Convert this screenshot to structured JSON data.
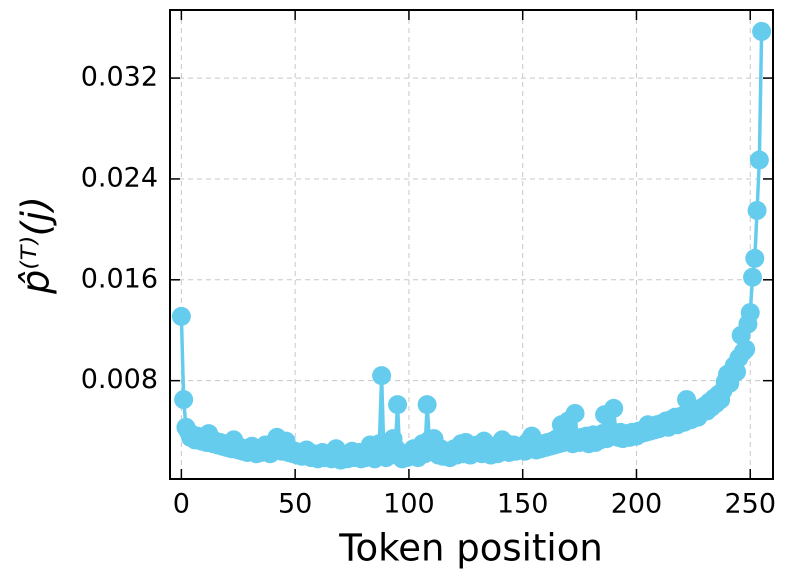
{
  "chart_data": {
    "type": "line",
    "xlabel": "Token position",
    "ylabel": "p̂⁽ᵀ⁾(j)",
    "color": "#66ccee",
    "grid": true,
    "xlim": [
      -5,
      260
    ],
    "xticks": [
      0,
      50,
      100,
      150,
      200,
      250
    ],
    "ylim": [
      0.0002,
      0.0374
    ],
    "yticks": [
      0.008,
      0.016,
      0.024,
      0.032
    ],
    "x": [
      0,
      1,
      2,
      3,
      4,
      5,
      6,
      7,
      8,
      9,
      10,
      11,
      12,
      13,
      14,
      15,
      16,
      17,
      18,
      19,
      20,
      21,
      22,
      23,
      24,
      25,
      26,
      27,
      28,
      29,
      30,
      31,
      32,
      33,
      34,
      35,
      36,
      37,
      38,
      39,
      40,
      41,
      42,
      43,
      44,
      45,
      46,
      47,
      48,
      49,
      50,
      51,
      52,
      53,
      54,
      55,
      56,
      57,
      58,
      59,
      60,
      61,
      62,
      63,
      64,
      65,
      66,
      67,
      68,
      69,
      70,
      71,
      72,
      73,
      74,
      75,
      76,
      77,
      78,
      79,
      80,
      81,
      82,
      83,
      84,
      85,
      86,
      87,
      88,
      89,
      90,
      91,
      92,
      93,
      94,
      95,
      96,
      97,
      98,
      99,
      100,
      101,
      102,
      103,
      104,
      105,
      106,
      107,
      108,
      109,
      110,
      111,
      112,
      113,
      114,
      115,
      116,
      117,
      118,
      119,
      120,
      121,
      122,
      123,
      124,
      125,
      126,
      127,
      128,
      129,
      130,
      131,
      132,
      133,
      134,
      135,
      136,
      137,
      138,
      139,
      140,
      141,
      142,
      143,
      144,
      145,
      146,
      147,
      148,
      149,
      150,
      151,
      152,
      153,
      154,
      155,
      156,
      157,
      158,
      159,
      160,
      161,
      162,
      163,
      164,
      165,
      166,
      167,
      168,
      169,
      170,
      171,
      172,
      173,
      174,
      175,
      176,
      177,
      178,
      179,
      180,
      181,
      182,
      183,
      184,
      185,
      186,
      187,
      188,
      189,
      190,
      191,
      192,
      193,
      194,
      195,
      196,
      197,
      198,
      199,
      200,
      201,
      202,
      203,
      204,
      205,
      206,
      207,
      208,
      209,
      210,
      211,
      212,
      213,
      214,
      215,
      216,
      217,
      218,
      219,
      220,
      221,
      222,
      223,
      224,
      225,
      226,
      227,
      228,
      229,
      230,
      231,
      232,
      233,
      234,
      235,
      236,
      237,
      238,
      239,
      240,
      241,
      242,
      243,
      244,
      245,
      246,
      247,
      248,
      249,
      250,
      251,
      252,
      253,
      254,
      255
    ],
    "values": [
      0.0131,
      0.0065,
      0.0043,
      0.004,
      0.0035,
      0.0037,
      0.0033,
      0.0036,
      0.0034,
      0.0032,
      0.0035,
      0.0031,
      0.0038,
      0.0033,
      0.003,
      0.0032,
      0.0029,
      0.0031,
      0.0028,
      0.003,
      0.0027,
      0.0029,
      0.0026,
      0.0033,
      0.0028,
      0.0025,
      0.0027,
      0.0024,
      0.0026,
      0.0023,
      0.0025,
      0.0028,
      0.0024,
      0.0022,
      0.0026,
      0.0023,
      0.0025,
      0.0029,
      0.0024,
      0.0022,
      0.0026,
      0.0031,
      0.0035,
      0.0027,
      0.0024,
      0.0028,
      0.0032,
      0.0023,
      0.0025,
      0.0022,
      0.0024,
      0.0021,
      0.0023,
      0.002,
      0.0022,
      0.0025,
      0.0021,
      0.0019,
      0.0022,
      0.002,
      0.0018,
      0.0021,
      0.0023,
      0.0019,
      0.002,
      0.0022,
      0.0018,
      0.0021,
      0.0026,
      0.002,
      0.0017,
      0.0019,
      0.0021,
      0.0018,
      0.0022,
      0.0024,
      0.0019,
      0.002,
      0.0023,
      0.0018,
      0.0021,
      0.0019,
      0.0022,
      0.0029,
      0.002,
      0.0018,
      0.0023,
      0.003,
      0.0084,
      0.0022,
      0.0019,
      0.0025,
      0.0021,
      0.0034,
      0.0027,
      0.0061,
      0.002,
      0.0018,
      0.0022,
      0.0019,
      0.0023,
      0.002,
      0.0026,
      0.0021,
      0.0019,
      0.0024,
      0.003,
      0.0022,
      0.0061,
      0.0033,
      0.0029,
      0.0034,
      0.0023,
      0.0021,
      0.0026,
      0.002,
      0.0024,
      0.0022,
      0.0019,
      0.0023,
      0.0026,
      0.0021,
      0.0024,
      0.003,
      0.0022,
      0.0031,
      0.0025,
      0.0021,
      0.0027,
      0.0023,
      0.0029,
      0.0024,
      0.0022,
      0.0032,
      0.0026,
      0.0023,
      0.0021,
      0.0025,
      0.0028,
      0.0022,
      0.0024,
      0.0033,
      0.0027,
      0.003,
      0.0023,
      0.0026,
      0.0029,
      0.0024,
      0.0027,
      0.0025,
      0.0028,
      0.0024,
      0.0031,
      0.0026,
      0.0036,
      0.0029,
      0.0025,
      0.0028,
      0.0026,
      0.003,
      0.0027,
      0.0031,
      0.0028,
      0.0032,
      0.0029,
      0.0034,
      0.003,
      0.0045,
      0.0031,
      0.0033,
      0.0048,
      0.0036,
      0.003,
      0.0054,
      0.0033,
      0.0031,
      0.0035,
      0.0032,
      0.0036,
      0.003,
      0.0034,
      0.0037,
      0.0031,
      0.0035,
      0.0033,
      0.0038,
      0.0053,
      0.0034,
      0.0036,
      0.004,
      0.0058,
      0.0037,
      0.0035,
      0.0039,
      0.0034,
      0.0036,
      0.0038,
      0.0035,
      0.0039,
      0.0037,
      0.0036,
      0.004,
      0.0038,
      0.0041,
      0.0039,
      0.0045,
      0.004,
      0.0043,
      0.0041,
      0.0045,
      0.0042,
      0.0046,
      0.0044,
      0.0048,
      0.0043,
      0.0049,
      0.0046,
      0.0051,
      0.0045,
      0.0048,
      0.0052,
      0.0047,
      0.0065,
      0.0055,
      0.0049,
      0.0053,
      0.0057,
      0.0051,
      0.0058,
      0.0055,
      0.006,
      0.0056,
      0.0063,
      0.0059,
      0.0066,
      0.0062,
      0.0069,
      0.0065,
      0.0072,
      0.0079,
      0.0085,
      0.0078,
      0.0088,
      0.0092,
      0.0087,
      0.0098,
      0.0116,
      0.0103,
      0.0105,
      0.0125,
      0.0134,
      0.0162,
      0.0177,
      0.0215,
      0.0255,
      0.0357
    ]
  }
}
